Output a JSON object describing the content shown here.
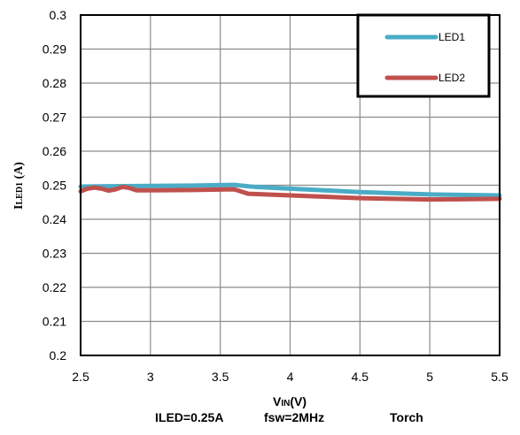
{
  "chart_data": {
    "type": "line",
    "title": "",
    "xlabel_main": "V",
    "xlabel_sub": "IN",
    "xlabel_tail": "(V)",
    "ylabel_main": "I",
    "ylabel_sub": "LED1",
    "ylabel_tail": " (A)",
    "caption": {
      "iled": "ILED=0.25A",
      "fsw": "fsw=2MHz",
      "mode": "Torch"
    },
    "xlim": [
      2.5,
      5.5
    ],
    "ylim": [
      0.2,
      0.3
    ],
    "x_ticks": [
      "2.5",
      "3",
      "3.5",
      "4",
      "4.5",
      "5",
      "5.5"
    ],
    "y_ticks": [
      "0.2",
      "0.21",
      "0.22",
      "0.23",
      "0.24",
      "0.25",
      "0.26",
      "0.27",
      "0.28",
      "0.29",
      "0.3"
    ],
    "grid": true,
    "legend_position": "top-right",
    "series": [
      {
        "name": "LED1",
        "color": "#4bacc6",
        "points": [
          [
            2.5,
            0.2496
          ],
          [
            2.7,
            0.2497
          ],
          [
            3.0,
            0.2498
          ],
          [
            3.3,
            0.2499
          ],
          [
            3.6,
            0.2501
          ],
          [
            3.75,
            0.2495
          ],
          [
            4.0,
            0.249
          ],
          [
            4.5,
            0.248
          ],
          [
            5.0,
            0.2473
          ],
          [
            5.5,
            0.247
          ]
        ]
      },
      {
        "name": "LED2",
        "color": "#c0504d",
        "points": [
          [
            2.5,
            0.2482
          ],
          [
            2.55,
            0.249
          ],
          [
            2.6,
            0.2493
          ],
          [
            2.65,
            0.249
          ],
          [
            2.7,
            0.2484
          ],
          [
            2.75,
            0.2488
          ],
          [
            2.8,
            0.2495
          ],
          [
            2.85,
            0.2492
          ],
          [
            2.9,
            0.2485
          ],
          [
            3.0,
            0.2485
          ],
          [
            3.3,
            0.2486
          ],
          [
            3.6,
            0.2488
          ],
          [
            3.7,
            0.2475
          ],
          [
            4.0,
            0.247
          ],
          [
            4.5,
            0.2462
          ],
          [
            5.0,
            0.2458
          ],
          [
            5.5,
            0.246
          ]
        ]
      }
    ]
  }
}
